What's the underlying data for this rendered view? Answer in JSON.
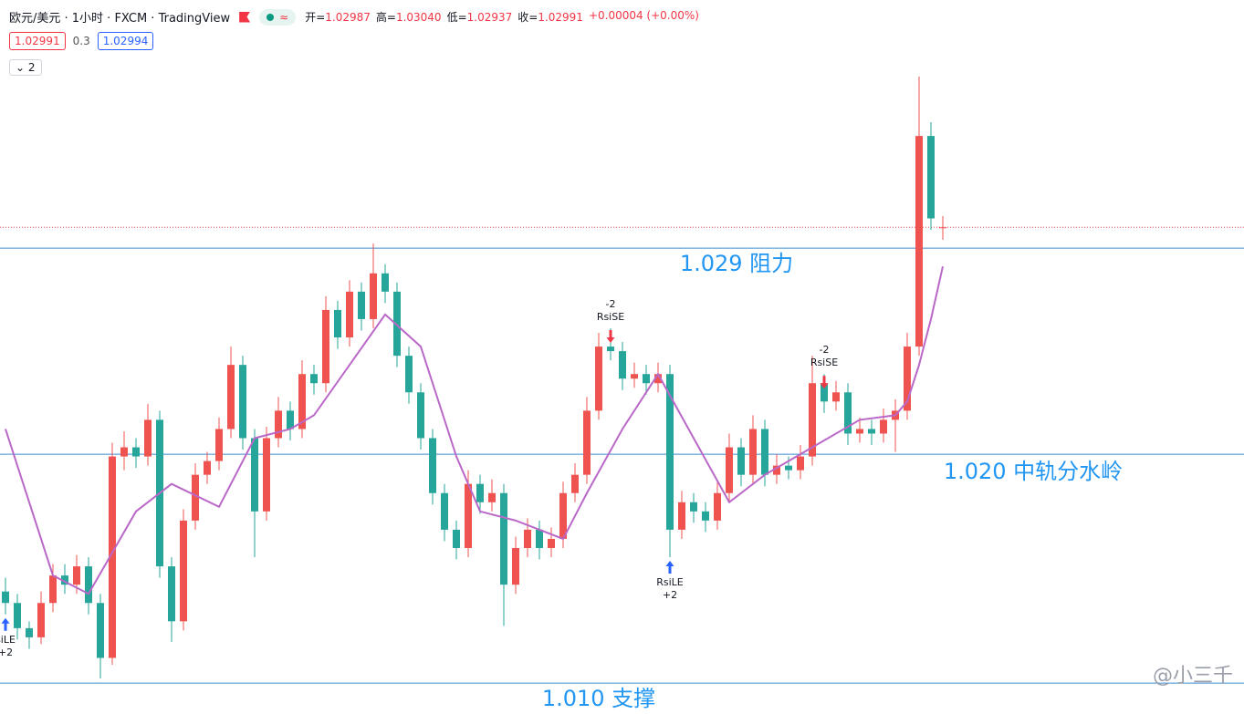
{
  "header": {
    "symbol": "欧元/美元 · 1小时 · FXCM · TradingView",
    "pill_icon": "≈",
    "ohlc": [
      {
        "key": "开=",
        "value": "1.02987"
      },
      {
        "key": "高=",
        "value": "1.03040"
      },
      {
        "key": "低=",
        "value": "1.02937"
      },
      {
        "key": "收=",
        "value": "1.02991"
      }
    ],
    "change": "+0.00004 (+0.00%)",
    "bid": "1.02991",
    "spread": "0.3",
    "ask": "1.02994",
    "indicators": "2"
  },
  "watermark": "@小三千",
  "chart_data": {
    "type": "candlestick",
    "ylim": [
      1.00865,
      1.03984
    ],
    "up_color": "#ef5350",
    "down_color": "#26a69a",
    "candles": [
      [
        1.014,
        1.0146,
        1.013,
        1.0135
      ],
      [
        1.0135,
        1.0139,
        1.0119,
        1.0124
      ],
      [
        1.0124,
        1.0127,
        1.0115,
        1.012
      ],
      [
        1.012,
        1.014,
        1.0117,
        1.0135
      ],
      [
        1.0135,
        1.0152,
        1.0131,
        1.0147
      ],
      [
        1.0147,
        1.0152,
        1.0139,
        1.0143
      ],
      [
        1.0143,
        1.0156,
        1.0139,
        1.0151
      ],
      [
        1.0151,
        1.0155,
        1.013,
        1.0135
      ],
      [
        1.0135,
        1.0139,
        1.0102,
        1.0111
      ],
      [
        1.0111,
        1.0205,
        1.0108,
        1.0199
      ],
      [
        1.0199,
        1.021,
        1.0193,
        1.0203
      ],
      [
        1.0203,
        1.0207,
        1.0194,
        1.0199
      ],
      [
        1.0199,
        1.0222,
        1.0195,
        1.0215
      ],
      [
        1.0215,
        1.0219,
        1.0146,
        1.0151
      ],
      [
        1.0151,
        1.0155,
        1.0118,
        1.0127
      ],
      [
        1.0127,
        1.0176,
        1.0123,
        1.0171
      ],
      [
        1.0171,
        1.0196,
        1.0167,
        1.0191
      ],
      [
        1.0191,
        1.0201,
        1.0187,
        1.0197
      ],
      [
        1.0197,
        1.0216,
        1.0193,
        1.0211
      ],
      [
        1.0211,
        1.0247,
        1.0207,
        1.0239
      ],
      [
        1.0239,
        1.0243,
        1.0202,
        1.0207
      ],
      [
        1.0207,
        1.0211,
        1.0155,
        1.0175
      ],
      [
        1.0175,
        1.0212,
        1.0171,
        1.0207
      ],
      [
        1.0207,
        1.0225,
        1.0203,
        1.0219
      ],
      [
        1.0219,
        1.0223,
        1.0206,
        1.0211
      ],
      [
        1.0211,
        1.0241,
        1.0207,
        1.0235
      ],
      [
        1.0235,
        1.0239,
        1.0226,
        1.0231
      ],
      [
        1.0231,
        1.0269,
        1.0227,
        1.0263
      ],
      [
        1.0263,
        1.0267,
        1.0246,
        1.0251
      ],
      [
        1.0251,
        1.0276,
        1.0247,
        1.0271
      ],
      [
        1.0271,
        1.0275,
        1.0254,
        1.0259
      ],
      [
        1.0259,
        1.0292,
        1.0255,
        1.0279
      ],
      [
        1.0279,
        1.0283,
        1.0266,
        1.0271
      ],
      [
        1.0271,
        1.0275,
        1.0238,
        1.0243
      ],
      [
        1.0243,
        1.0247,
        1.0222,
        1.0227
      ],
      [
        1.0227,
        1.0231,
        1.0202,
        1.0207
      ],
      [
        1.0207,
        1.0211,
        1.0178,
        1.0183
      ],
      [
        1.0183,
        1.0187,
        1.0162,
        1.0167
      ],
      [
        1.0167,
        1.0171,
        1.0154,
        1.0159
      ],
      [
        1.0159,
        1.0193,
        1.0155,
        1.0187
      ],
      [
        1.0187,
        1.0191,
        1.0174,
        1.0179
      ],
      [
        1.0179,
        1.0189,
        1.0175,
        1.0183
      ],
      [
        1.0183,
        1.0187,
        1.0125,
        1.0143
      ],
      [
        1.0143,
        1.0164,
        1.0139,
        1.0159
      ],
      [
        1.0159,
        1.0172,
        1.0155,
        1.0167
      ],
      [
        1.0167,
        1.0171,
        1.0154,
        1.0159
      ],
      [
        1.0159,
        1.0168,
        1.0155,
        1.0163
      ],
      [
        1.0163,
        1.0188,
        1.0159,
        1.0183
      ],
      [
        1.0183,
        1.0196,
        1.0179,
        1.0191
      ],
      [
        1.0191,
        1.0225,
        1.0187,
        1.0219
      ],
      [
        1.0219,
        1.0253,
        1.0215,
        1.0247
      ],
      [
        1.0247,
        1.0255,
        1.0241,
        1.0245
      ],
      [
        1.0245,
        1.0249,
        1.0228,
        1.0233
      ],
      [
        1.0233,
        1.024,
        1.0229,
        1.0235
      ],
      [
        1.0235,
        1.0239,
        1.0226,
        1.0231
      ],
      [
        1.0231,
        1.024,
        1.0227,
        1.0235
      ],
      [
        1.0235,
        1.0239,
        1.0155,
        1.0167
      ],
      [
        1.0167,
        1.0184,
        1.0163,
        1.0179
      ],
      [
        1.0179,
        1.0183,
        1.017,
        1.0175
      ],
      [
        1.0175,
        1.0179,
        1.0166,
        1.0171
      ],
      [
        1.0171,
        1.0188,
        1.0167,
        1.0183
      ],
      [
        1.0183,
        1.0209,
        1.0179,
        1.0203
      ],
      [
        1.0203,
        1.0207,
        1.0186,
        1.0191
      ],
      [
        1.0191,
        1.0217,
        1.0187,
        1.0211
      ],
      [
        1.0211,
        1.0215,
        1.0186,
        1.0191
      ],
      [
        1.0191,
        1.02,
        1.0187,
        1.0195
      ],
      [
        1.0195,
        1.0199,
        1.0189,
        1.0193
      ],
      [
        1.0193,
        1.0204,
        1.0189,
        1.0199
      ],
      [
        1.0199,
        1.0243,
        1.0195,
        1.0231
      ],
      [
        1.0231,
        1.0235,
        1.0218,
        1.0223
      ],
      [
        1.0223,
        1.0232,
        1.0219,
        1.0227
      ],
      [
        1.0227,
        1.0231,
        1.0204,
        1.0209
      ],
      [
        1.0209,
        1.0216,
        1.0205,
        1.0211
      ],
      [
        1.0211,
        1.0215,
        1.0204,
        1.0209
      ],
      [
        1.0209,
        1.022,
        1.0205,
        1.0215
      ],
      [
        1.0215,
        1.0224,
        1.0201,
        1.0219
      ],
      [
        1.0219,
        1.0253,
        1.0215,
        1.0247
      ],
      [
        1.0247,
        1.0365,
        1.0243,
        1.0339
      ],
      [
        1.0339,
        1.0345,
        1.0298,
        1.0303
      ],
      [
        1.02987,
        1.0304,
        1.02937,
        1.02991
      ]
    ],
    "ma": {
      "color": "#ba68c8",
      "x": [
        0,
        4,
        7,
        11,
        14,
        18,
        21,
        24,
        26,
        29,
        32,
        35,
        38,
        40,
        43,
        47,
        49,
        52,
        55,
        58,
        61,
        64,
        68,
        72,
        75,
        76,
        77,
        78,
        79
      ],
      "values": [
        1.0211,
        1.0147,
        1.0139,
        1.0175,
        1.0187,
        1.0177,
        1.0207,
        1.0211,
        1.0217,
        1.0239,
        1.0261,
        1.0247,
        1.0199,
        1.0175,
        1.0171,
        1.0163,
        1.0183,
        1.0211,
        1.0235,
        1.0207,
        1.0179,
        1.0191,
        1.0203,
        1.0215,
        1.0217,
        1.0223,
        1.0239,
        1.0259,
        1.0282
      ]
    },
    "hlines": [
      {
        "value": 1.029,
        "label": "1.029 阻力"
      },
      {
        "value": 1.02,
        "label": "1.020 中轨分水岭"
      },
      {
        "value": 1.01,
        "label": "1.010 支撑"
      }
    ],
    "signals": [
      {
        "index": 0,
        "side": "long",
        "label": "siLE",
        "qty": "+2"
      },
      {
        "index": 51,
        "side": "short",
        "label": "RsiSE",
        "qty": "-2"
      },
      {
        "index": 56,
        "side": "long",
        "label": "RsiLE",
        "qty": "+2"
      },
      {
        "index": 69,
        "side": "short",
        "label": "RsiSE",
        "qty": "-2"
      }
    ]
  }
}
